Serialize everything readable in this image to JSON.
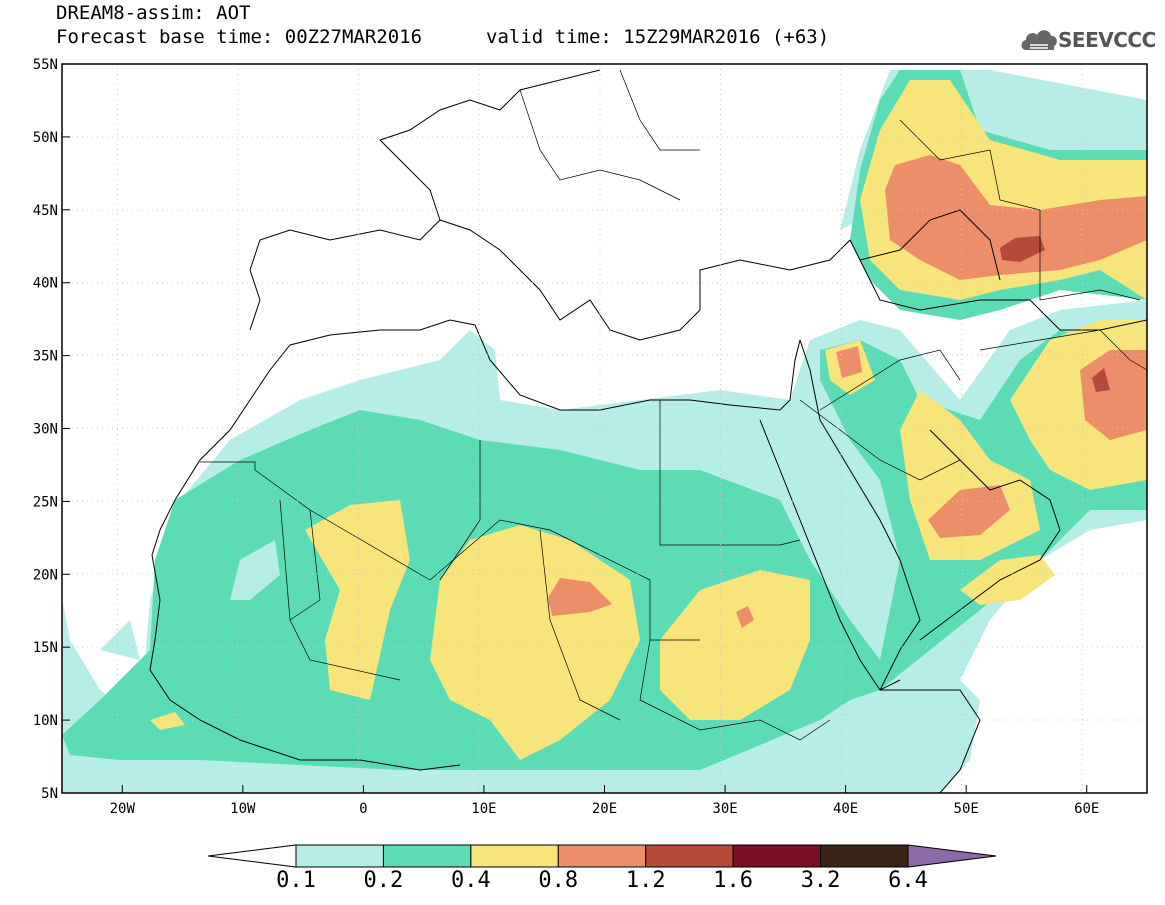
{
  "header": {
    "title_line1": "DREAM8-assim: AOT",
    "title_line2": "Forecast base time: 00Z27MAR2016",
    "valid_time": "valid time: 15Z29MAR2016 (+63)",
    "logo_text": "SEEVCCC"
  },
  "map": {
    "projection": "lat-lon",
    "lon_range": [
      -25,
      65
    ],
    "lat_range": [
      5,
      55
    ],
    "lon_ticks": [
      {
        "value": -20,
        "label": "20W"
      },
      {
        "value": -10,
        "label": "10W"
      },
      {
        "value": 0,
        "label": "0"
      },
      {
        "value": 10,
        "label": "10E"
      },
      {
        "value": 20,
        "label": "20E"
      },
      {
        "value": 30,
        "label": "30E"
      },
      {
        "value": 40,
        "label": "40E"
      },
      {
        "value": 50,
        "label": "50E"
      },
      {
        "value": 60,
        "label": "60E"
      }
    ],
    "lat_ticks": [
      {
        "value": 55,
        "label": "55N"
      },
      {
        "value": 50,
        "label": "50N"
      },
      {
        "value": 45,
        "label": "45N"
      },
      {
        "value": 40,
        "label": "40N"
      },
      {
        "value": 35,
        "label": "35N"
      },
      {
        "value": 30,
        "label": "30N"
      },
      {
        "value": 25,
        "label": "25N"
      },
      {
        "value": 20,
        "label": "20N"
      },
      {
        "value": 15,
        "label": "15N"
      },
      {
        "value": 10,
        "label": "10N"
      },
      {
        "value": 5,
        "label": "5N"
      }
    ],
    "grid": "dotted"
  },
  "colorbar": {
    "levels": [
      "0.1",
      "0.2",
      "0.4",
      "0.8",
      "1.2",
      "1.6",
      "3.2",
      "6.4"
    ],
    "colors": [
      "#ffffff",
      "#b6ede7",
      "#5bdcb5",
      "#f7e47a",
      "#ec8e6a",
      "#b54a3b",
      "#7a0e25",
      "#3a2416",
      "#8b6aa6"
    ]
  }
}
